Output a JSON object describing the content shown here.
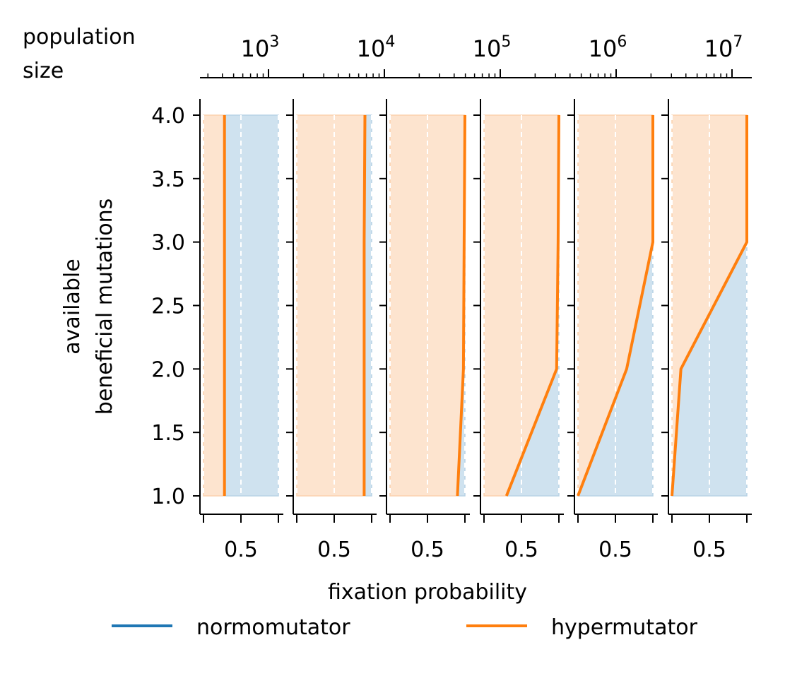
{
  "chart_data": {
    "type": "area",
    "top_axis": {
      "title_line1": "population",
      "title_line2": "size",
      "scale": "log",
      "tick_labels": [
        {
          "base": "10",
          "exp": "3"
        },
        {
          "base": "10",
          "exp": "4"
        },
        {
          "base": "10",
          "exp": "5"
        },
        {
          "base": "10",
          "exp": "6"
        },
        {
          "base": "10",
          "exp": "7"
        }
      ]
    },
    "ylabel_line1": "available",
    "ylabel_line2": "beneficial mutations",
    "xlabel": "fixation probability",
    "ylim": [
      1.0,
      4.0
    ],
    "yticks": [
      "1.0",
      "1.5",
      "2.0",
      "2.5",
      "3.0",
      "3.5",
      "4.0"
    ],
    "x_tick_label": "0.5",
    "xlim": [
      0.0,
      1.0
    ],
    "grid": "dashed vertical at 0, 0.5, 1",
    "legend_placement": "bottom",
    "colors": {
      "normomutator": "#1f77b4",
      "hypermutator": "#ff7f0e",
      "normomutator_fill": "#cfe2ef",
      "hypermutator_fill": "#fde4cf"
    },
    "series": [
      {
        "name": "normomutator",
        "color": "#1f77b4"
      },
      {
        "name": "hypermutator",
        "color": "#ff7f0e"
      }
    ],
    "panels": [
      {
        "population_size": 1000,
        "mutations": [
          1,
          2,
          3,
          4
        ],
        "hypermutator_fixation": [
          0.28,
          0.28,
          0.28,
          0.28
        ]
      },
      {
        "population_size": 10000,
        "mutations": [
          1,
          2,
          3,
          4
        ],
        "hypermutator_fixation": [
          0.9,
          0.9,
          0.9,
          0.91
        ]
      },
      {
        "population_size": 50000,
        "mutations": [
          1,
          2,
          3,
          4
        ],
        "hypermutator_fixation": [
          0.9,
          0.98,
          0.99,
          1.0
        ]
      },
      {
        "population_size": 300000,
        "mutations": [
          1,
          2,
          3,
          4
        ],
        "hypermutator_fixation": [
          0.3,
          0.97,
          0.99,
          1.0
        ]
      },
      {
        "population_size": 2000000,
        "mutations": [
          1,
          2,
          3,
          4
        ],
        "hypermutator_fixation": [
          0.0,
          0.65,
          1.0,
          1.0
        ]
      },
      {
        "population_size": 12000000,
        "mutations": [
          1,
          2,
          3,
          4
        ],
        "hypermutator_fixation": [
          0.0,
          0.12,
          1.0,
          1.0
        ]
      }
    ]
  }
}
